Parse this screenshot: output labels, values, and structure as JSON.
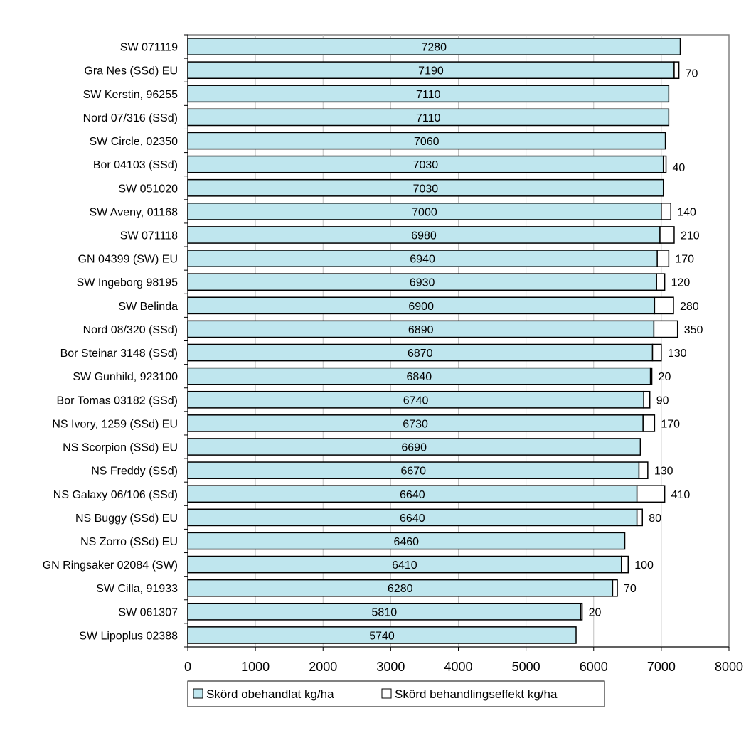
{
  "chart_data": {
    "type": "bar",
    "orientation": "horizontal",
    "stacked": true,
    "title": "",
    "xlabel": "",
    "ylabel": "",
    "xlim": [
      0,
      8000
    ],
    "xticks": [
      0,
      1000,
      2000,
      3000,
      4000,
      5000,
      6000,
      7000,
      8000
    ],
    "grid": "vertical",
    "legend_position": "bottom",
    "categories": [
      "SW 071119",
      "Gra Nes (SSd) EU",
      "SW Kerstin, 96255",
      "Nord 07/316 (SSd)",
      "SW Circle, 02350",
      "Bor 04103 (SSd)",
      "SW 051020",
      "SW Aveny, 01168",
      "SW 071118",
      "GN 04399 (SW) EU",
      "SW Ingeborg 98195",
      "SW Belinda",
      "Nord 08/320 (SSd)",
      "Bor Steinar 3148 (SSd)",
      "SW Gunhild, 923100",
      "Bor Tomas 03182 (SSd)",
      "NS Ivory, 1259 (SSd) EU",
      "NS Scorpion (SSd) EU",
      "NS Freddy (SSd)",
      "NS Galaxy 06/106 (SSd)",
      "NS Buggy (SSd) EU",
      "NS Zorro (SSd) EU",
      "GN Ringsaker 02084 (SW)",
      "SW Cilla, 91933",
      "SW 061307",
      "SW Lipoplus 02388"
    ],
    "series": [
      {
        "name": "Skörd obehandlat kg/ha",
        "color": "#bfe6ee",
        "values": [
          7280,
          7190,
          7110,
          7110,
          7060,
          7030,
          7030,
          7000,
          6980,
          6940,
          6930,
          6900,
          6890,
          6870,
          6840,
          6740,
          6730,
          6690,
          6670,
          6640,
          6640,
          6460,
          6410,
          6280,
          5810,
          5740
        ],
        "labels": [
          "7280",
          "7190",
          "7110",
          "7110",
          "7060",
          "7030",
          "7030",
          "7000",
          "6980",
          "6940",
          "6930",
          "6900",
          "6890",
          "6870",
          "6840",
          "6740",
          "6730",
          "6690",
          "6670",
          "6640",
          "6640",
          "6460",
          "6410",
          "6280",
          "5810",
          "5740"
        ]
      },
      {
        "name": "Skörd behandlingseffekt kg/ha",
        "color": "#ffffff",
        "values": [
          0,
          70,
          0,
          0,
          0,
          40,
          0,
          140,
          210,
          170,
          120,
          280,
          350,
          130,
          20,
          90,
          170,
          0,
          130,
          410,
          80,
          0,
          100,
          70,
          20,
          0
        ],
        "labels": [
          "",
          "70",
          "",
          "",
          "",
          "40",
          "",
          "140",
          "210",
          "170",
          "120",
          "280",
          "350",
          "130",
          "20",
          "90",
          "170",
          "",
          "130",
          "410",
          "80",
          "",
          "100",
          "70",
          "20",
          ""
        ]
      }
    ]
  }
}
